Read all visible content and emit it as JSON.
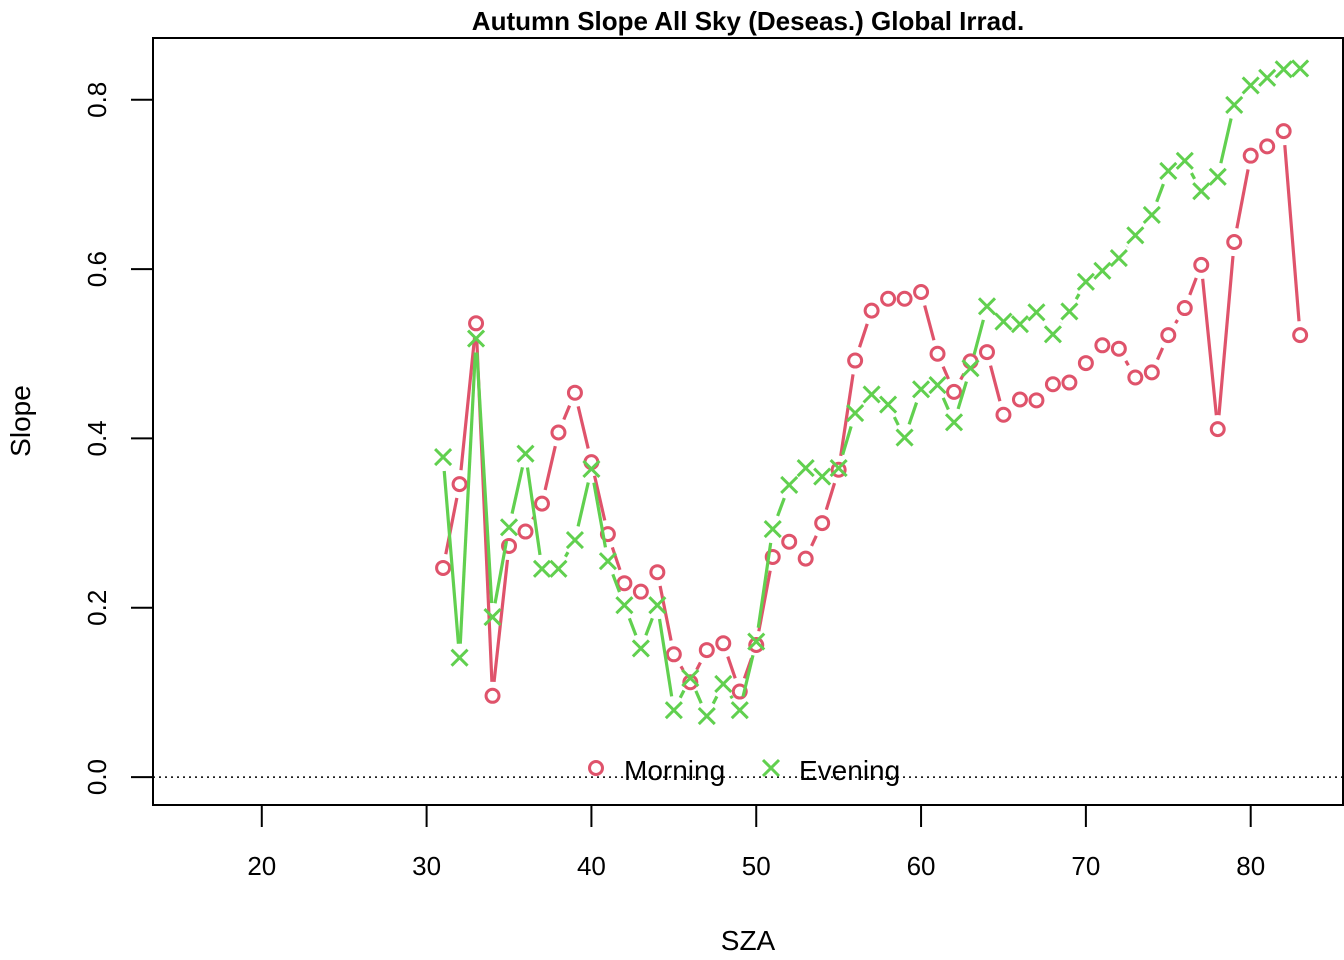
{
  "chart_data": {
    "type": "line",
    "title": "Autumn Slope All Sky (Deseas.) Global Irrad.",
    "xlabel": "SZA",
    "ylabel": "Slope",
    "xlim": [
      13.4,
      85.6
    ],
    "ylim": [
      -0.033,
      0.873
    ],
    "xticks": [
      20,
      30,
      40,
      50,
      60,
      70,
      80
    ],
    "yticks": [
      0.0,
      0.2,
      0.4,
      0.6,
      0.8
    ],
    "xtick_labels": [
      "20",
      "30",
      "40",
      "50",
      "60",
      "70",
      "80"
    ],
    "ytick_labels": [
      "0.0",
      "0.2",
      "0.4",
      "0.6",
      "0.8"
    ],
    "reference_line": {
      "y": 0,
      "style": "dotted"
    },
    "legend": {
      "placement": "bottom-center",
      "entries": [
        "Morning",
        "Evening"
      ]
    },
    "x": [
      31,
      32,
      33,
      34,
      35,
      36,
      37,
      38,
      39,
      40,
      41,
      42,
      43,
      44,
      45,
      46,
      47,
      48,
      49,
      50,
      51,
      52,
      53,
      54,
      55,
      56,
      57,
      58,
      59,
      60,
      61,
      62,
      63,
      64,
      65,
      66,
      67,
      68,
      69,
      70,
      71,
      72,
      73,
      74,
      75,
      76,
      77,
      78,
      79,
      80,
      81,
      82,
      83
    ],
    "series": [
      {
        "name": "Morning",
        "color": "#DF536B",
        "marker": "circle",
        "values": [
          0.247,
          0.346,
          0.536,
          0.096,
          0.273,
          0.29,
          0.323,
          0.407,
          0.454,
          0.372,
          0.287,
          0.229,
          0.219,
          0.242,
          0.145,
          0.112,
          0.15,
          0.158,
          0.101,
          0.156,
          0.26,
          0.278,
          0.258,
          0.3,
          0.363,
          0.492,
          0.551,
          0.565,
          0.565,
          0.573,
          0.5,
          0.455,
          0.491,
          0.502,
          0.428,
          0.446,
          0.445,
          0.464,
          0.466,
          0.489,
          0.51,
          0.506,
          0.472,
          0.478,
          0.522,
          0.554,
          0.605,
          0.411,
          0.632,
          0.734,
          0.745,
          0.763,
          0.522
        ]
      },
      {
        "name": "Evening",
        "color": "#61D04F",
        "marker": "x",
        "values": [
          0.378,
          0.141,
          0.518,
          0.189,
          0.295,
          0.382,
          0.246,
          0.246,
          0.28,
          0.364,
          0.255,
          0.203,
          0.152,
          0.203,
          0.079,
          0.117,
          0.072,
          0.11,
          0.079,
          0.16,
          0.293,
          0.345,
          0.365,
          0.355,
          0.365,
          0.43,
          0.452,
          0.44,
          0.401,
          0.458,
          0.463,
          0.419,
          0.483,
          0.556,
          0.538,
          0.535,
          0.549,
          0.523,
          0.55,
          0.585,
          0.598,
          0.613,
          0.64,
          0.664,
          0.716,
          0.728,
          0.692,
          0.709,
          0.794,
          0.817,
          0.826,
          0.836,
          0.837
        ]
      }
    ]
  }
}
